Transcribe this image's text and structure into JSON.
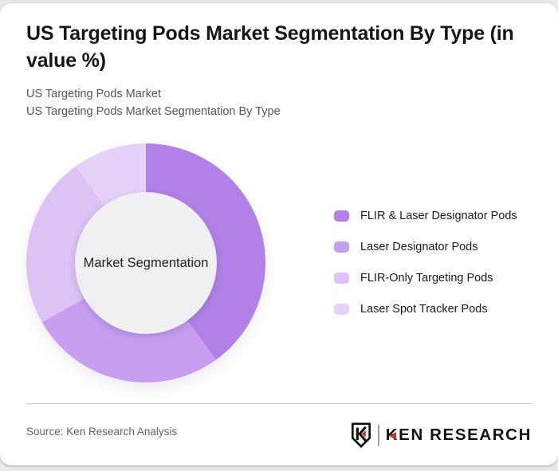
{
  "header": {
    "title": "US Targeting Pods Market Segmentation By Type (in value %)",
    "subtitle_lines": [
      "US Targeting Pods Market",
      "US Targeting Pods Market Segmentation By Type"
    ]
  },
  "chart_data": {
    "type": "pie",
    "variant": "donut",
    "title": "US Targeting Pods Market Segmentation By Type (in value %)",
    "center_label": "Market Segmentation",
    "start_angle_deg": 0,
    "direction": "clockwise",
    "legend_position": "right",
    "data_labels_shown": false,
    "segments": [
      {
        "label": "FLIR & Laser Designator Pods",
        "value": 40,
        "color": "#b181e8"
      },
      {
        "label": "Laser Designator Pods",
        "value": 26.7,
        "color": "#c79ef0"
      },
      {
        "label": "FLIR-Only Targeting Pods",
        "value": 23.3,
        "color": "#dcc2f5"
      },
      {
        "label": "Laser Spot Tracker Pods",
        "value": 10,
        "color": "#e4d2f8"
      }
    ]
  },
  "footer": {
    "source": "Source: Ken Research Analysis",
    "logo_k": "K",
    "logo_rest": "EN RESEARCH"
  },
  "colors": {
    "page_background": "#e7e9eb",
    "card_background": "#ffffff",
    "donut_hole": "#f0eff1",
    "divider": "#cccccc",
    "title_text": "#161616",
    "subtitle_text": "#4e5862",
    "source_text": "#5a6571",
    "logo_accent_red": "#c3322c",
    "logo_text": "#121212"
  }
}
